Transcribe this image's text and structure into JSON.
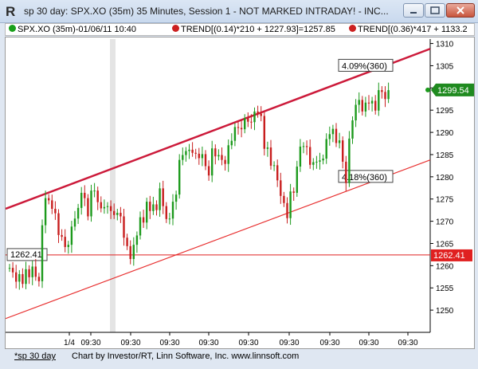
{
  "window": {
    "title": "sp 30 day: SPX.XO (35m) 35 Minutes, Session 1 - NOT MARKED INTRADAY! - INC..."
  },
  "legend": {
    "items": [
      {
        "text": "SPX.XO (35m)-01/06/11 10:40",
        "dot_color": "#19a019"
      },
      {
        "text": "TREND[(0.14)*210 + 1227.93]=1257.85",
        "dot_color": "#cc2020"
      },
      {
        "text": "TREND[(0.36)*417 + 1133.2",
        "dot_color": "#cc2020"
      }
    ]
  },
  "chart_data": {
    "type": "candlestick",
    "ylim": [
      1245,
      1311
    ],
    "y_ticks": [
      1250,
      1255,
      1260,
      1265,
      1270,
      1275,
      1280,
      1285,
      1290,
      1295,
      1300,
      1305,
      1310
    ],
    "x_tick_labels": [
      "1/4",
      "09:30",
      "09:30",
      "09:30",
      "09:30",
      "09:30",
      "09:30",
      "09:30",
      "09:30",
      "09:30"
    ],
    "last_price_label": "1299.54",
    "last_price": 1299.54,
    "hline_label": "1262.41",
    "hline_value": 1262.41,
    "channel_annotations": [
      {
        "text": "4.09%(360)",
        "value": 1305
      },
      {
        "text": "4.18%(360)",
        "value": 1280
      }
    ],
    "trend_upper": {
      "start": 1272.8,
      "end": 1308.8
    },
    "trend_lower": {
      "start": 1248.1,
      "end": 1283.8
    },
    "closes": [
      1259.5,
      1258.5,
      1256.4,
      1258.1,
      1255.9,
      1259.2,
      1257.4,
      1259.8,
      1257.5,
      1256.5,
      1269.1,
      1275.2,
      1274.7,
      1272.8,
      1271.8,
      1266.9,
      1266.5,
      1264.2,
      1264.7,
      1268.8,
      1270.6,
      1273,
      1276.4,
      1275.2,
      1271.1,
      1276.9,
      1276.9,
      1274.3,
      1272.9,
      1273.2,
      1273.4,
      1272.3,
      1271.4,
      1271.9,
      1271.1,
      1266.3,
      1264.4,
      1261.5,
      1264.7,
      1266.8,
      1270.9,
      1269.7,
      1274.4,
      1272.3,
      1273.8,
      1272.5,
      1277.4,
      1273.4,
      1270.5,
      1270.6,
      1274.4,
      1276,
      1283.8,
      1284.9,
      1285.8,
      1286.1,
      1285.4,
      1285.2,
      1284.2,
      1285.1,
      1282.4,
      1280.3,
      1286.4,
      1284.6,
      1284.9,
      1283.8,
      1282.9,
      1287.1,
      1288.1,
      1291.2,
      1291,
      1290.7,
      1293.2,
      1292.4,
      1292.3,
      1294.7,
      1294.2,
      1293.7,
      1286.3,
      1286.6,
      1282.5,
      1282.6,
      1279.2,
      1275.7,
      1274.1,
      1270.7,
      1276.7,
      1276.4,
      1282.3,
      1286.8,
      1286.9,
      1286.7,
      1282.7,
      1283.3,
      1283.4,
      1283.7,
      1284.1,
      1288.5,
      1289.6,
      1290.8,
      1287.6,
      1288.2,
      1283.4,
      1278.6,
      1288.6,
      1292.7,
      1296.2,
      1297.3,
      1294.7,
      1296.7,
      1296.5,
      1297.1,
      1294.9,
      1299.5,
      1299.1,
      1297.5,
      1299.5
    ]
  },
  "status": {
    "chart_name": "*sp 30 day",
    "credit": "Chart by Investor/RT, Linn Software, Inc. www.linnsoft.com"
  },
  "colors": {
    "up": "#1c9a1c",
    "down": "#c81e1e",
    "trend_upper": "#cc1a3a",
    "trend_lower": "#e83030",
    "hline": "#e02020"
  }
}
